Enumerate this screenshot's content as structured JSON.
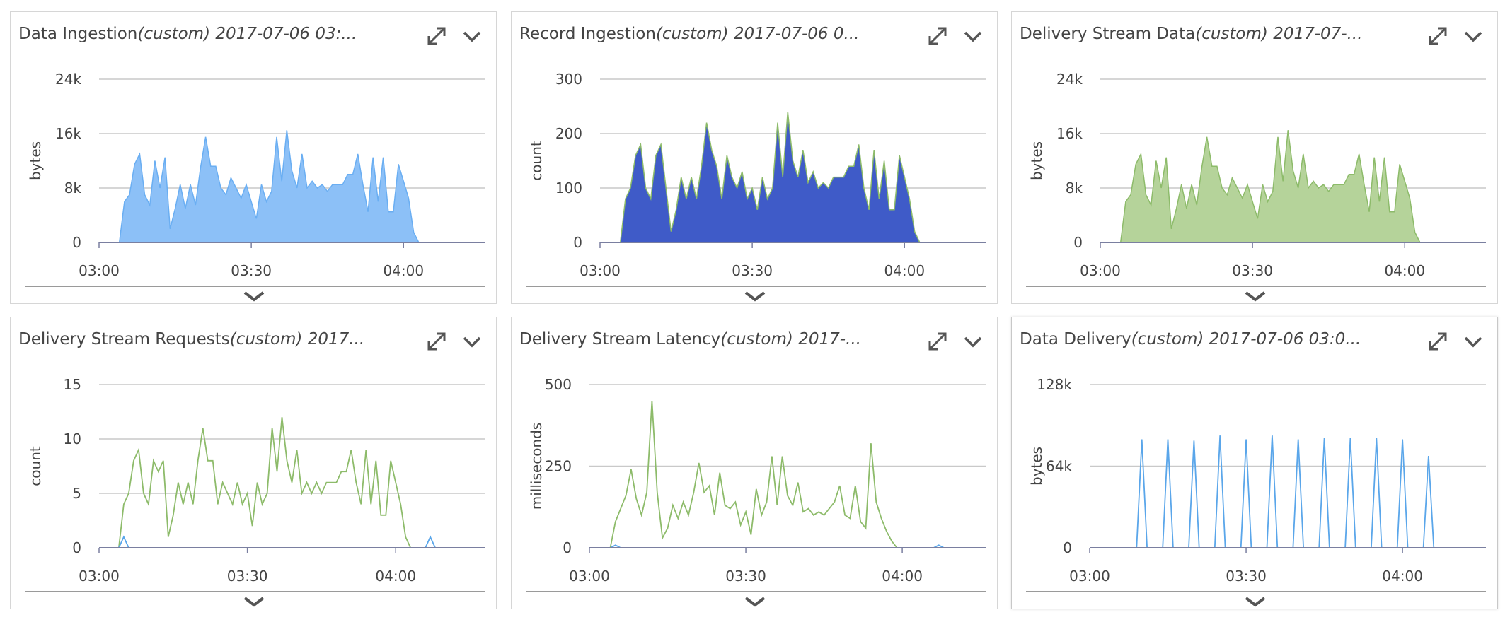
{
  "panels": [
    {
      "title": "Data Ingestion",
      "title_suffix": "(custom) 2017-07-06 03:...",
      "chart_data": {
        "type": "area",
        "ylabel": "bytes",
        "ylim": [
          0,
          24000
        ],
        "yticks": [
          0,
          8000,
          16000,
          24000
        ],
        "ytick_labels": [
          "0",
          "8k",
          "16k",
          "24k"
        ],
        "xticks": [
          "03:00",
          "03:30",
          "04:00"
        ],
        "x_minutes_range": [
          0,
          76
        ],
        "grid": true,
        "series": [
          {
            "color": "#6aaef2",
            "fill": "#8cc0f7",
            "x": [
              0,
              4,
              5,
              6,
              7,
              8,
              9,
              10,
              11,
              12,
              13,
              14,
              15,
              16,
              17,
              18,
              19,
              20,
              21,
              22,
              23,
              24,
              25,
              26,
              27,
              28,
              29,
              30,
              31,
              32,
              33,
              34,
              35,
              36,
              37,
              38,
              39,
              40,
              41,
              42,
              43,
              44,
              45,
              46,
              47,
              48,
              49,
              50,
              51,
              52,
              53,
              54,
              55,
              56,
              57,
              58,
              59,
              60,
              61,
              62,
              63,
              64,
              65,
              66,
              76
            ],
            "y": [
              0,
              0,
              6000,
              7000,
              11500,
              13000,
              7000,
              5500,
              12000,
              8000,
              12500,
              2000,
              5000,
              8500,
              5000,
              8500,
              5500,
              11000,
              15500,
              11200,
              11200,
              8000,
              7000,
              9500,
              8000,
              6500,
              8500,
              6000,
              3500,
              8500,
              6000,
              7500,
              15500,
              9000,
              16500,
              10500,
              8000,
              13000,
              8000,
              9000,
              8000,
              8500,
              7500,
              8500,
              8500,
              8500,
              10000,
              10000,
              13000,
              8500,
              4500,
              12500,
              6000,
              12500,
              4500,
              4500,
              11500,
              9000,
              6500,
              1500,
              0,
              0,
              0,
              0,
              0
            ]
          }
        ]
      }
    },
    {
      "title": "Record Ingestion",
      "title_suffix": "(custom) 2017-07-06 0...",
      "chart_data": {
        "type": "area",
        "ylabel": "count",
        "ylim": [
          0,
          300
        ],
        "yticks": [
          0,
          100,
          200,
          300
        ],
        "ytick_labels": [
          "0",
          "100",
          "200",
          "300"
        ],
        "xticks": [
          "03:00",
          "03:30",
          "04:00"
        ],
        "x_minutes_range": [
          0,
          76
        ],
        "grid": true,
        "series": [
          {
            "color": "#2a49b4",
            "fill": "#3f5bc8",
            "stroke": "#8dbb6a",
            "x": [
              0,
              4,
              5,
              6,
              7,
              8,
              9,
              10,
              11,
              12,
              13,
              14,
              15,
              16,
              17,
              18,
              19,
              20,
              21,
              22,
              23,
              24,
              25,
              26,
              27,
              28,
              29,
              30,
              31,
              32,
              33,
              34,
              35,
              36,
              37,
              38,
              39,
              40,
              41,
              42,
              43,
              44,
              45,
              46,
              47,
              48,
              49,
              50,
              51,
              52,
              53,
              54,
              55,
              56,
              57,
              58,
              59,
              60,
              61,
              62,
              63,
              64,
              65,
              66,
              76
            ],
            "y": [
              0,
              0,
              80,
              100,
              160,
              180,
              100,
              80,
              160,
              180,
              100,
              20,
              60,
              120,
              80,
              120,
              80,
              140,
              220,
              170,
              140,
              80,
              160,
              120,
              100,
              130,
              80,
              100,
              60,
              120,
              80,
              100,
              220,
              120,
              240,
              150,
              120,
              170,
              110,
              130,
              100,
              110,
              100,
              120,
              120,
              120,
              140,
              140,
              180,
              100,
              60,
              170,
              80,
              150,
              60,
              60,
              160,
              120,
              80,
              20,
              0,
              0,
              0,
              0,
              0
            ]
          }
        ]
      }
    },
    {
      "title": "Delivery Stream Data",
      "title_suffix": "(custom) 2017-07-...",
      "chart_data": {
        "type": "area",
        "ylabel": "bytes",
        "ylim": [
          0,
          24000
        ],
        "yticks": [
          0,
          8000,
          16000,
          24000
        ],
        "ytick_labels": [
          "0",
          "8k",
          "16k",
          "24k"
        ],
        "xticks": [
          "03:00",
          "03:30",
          "04:00"
        ],
        "x_minutes_range": [
          0,
          76
        ],
        "grid": true,
        "series": [
          {
            "color": "#8dbb6a",
            "fill": "#b5d39a",
            "x": [
              0,
              4,
              5,
              6,
              7,
              8,
              9,
              10,
              11,
              12,
              13,
              14,
              15,
              16,
              17,
              18,
              19,
              20,
              21,
              22,
              23,
              24,
              25,
              26,
              27,
              28,
              29,
              30,
              31,
              32,
              33,
              34,
              35,
              36,
              37,
              38,
              39,
              40,
              41,
              42,
              43,
              44,
              45,
              46,
              47,
              48,
              49,
              50,
              51,
              52,
              53,
              54,
              55,
              56,
              57,
              58,
              59,
              60,
              61,
              62,
              63,
              64,
              65,
              66,
              76
            ],
            "y": [
              0,
              0,
              6000,
              7000,
              11500,
              13000,
              7000,
              5500,
              12000,
              8000,
              12500,
              2000,
              5000,
              8500,
              5000,
              8500,
              5500,
              11000,
              15500,
              11200,
              11200,
              8000,
              7000,
              9500,
              8000,
              6500,
              8500,
              6000,
              3500,
              8500,
              6000,
              7500,
              15500,
              9000,
              16500,
              10500,
              8000,
              13000,
              8000,
              9000,
              8000,
              8500,
              7500,
              8500,
              8500,
              8500,
              10000,
              10000,
              13000,
              8500,
              4500,
              12500,
              6000,
              12500,
              4500,
              4500,
              11500,
              9000,
              6500,
              1500,
              0,
              0,
              0,
              0,
              0
            ]
          }
        ]
      }
    },
    {
      "title": "Delivery Stream Requests",
      "title_suffix": "(custom) 2017...",
      "chart_data": {
        "type": "line",
        "ylabel": "count",
        "ylim": [
          0,
          15
        ],
        "yticks": [
          0,
          5,
          10,
          15
        ],
        "ytick_labels": [
          "0",
          "5",
          "10",
          "15"
        ],
        "xticks": [
          "03:00",
          "03:30",
          "04:00"
        ],
        "x_minutes_range": [
          0,
          78
        ],
        "grid": true,
        "series": [
          {
            "color": "#8dbb6a",
            "x": [
              0,
              4,
              5,
              6,
              7,
              8,
              9,
              10,
              11,
              12,
              13,
              14,
              15,
              16,
              17,
              18,
              19,
              20,
              21,
              22,
              23,
              24,
              25,
              26,
              27,
              28,
              29,
              30,
              31,
              32,
              33,
              34,
              35,
              36,
              37,
              38,
              39,
              40,
              41,
              42,
              43,
              44,
              45,
              46,
              47,
              48,
              49,
              50,
              51,
              52,
              53,
              54,
              55,
              56,
              57,
              58,
              59,
              60,
              61,
              62,
              63,
              64,
              65,
              66,
              78
            ],
            "y": [
              0,
              0,
              4,
              5,
              8,
              9,
              5,
              4,
              8,
              7,
              8,
              1,
              3,
              6,
              4,
              6,
              4,
              8,
              11,
              8,
              8,
              4,
              6,
              5,
              4,
              6,
              4,
              5,
              2,
              6,
              4,
              5,
              11,
              7,
              12,
              8,
              6,
              9,
              5,
              6,
              5,
              6,
              5,
              6,
              6,
              6,
              7,
              7,
              9,
              6,
              4,
              9,
              4,
              8,
              3,
              3,
              8,
              6,
              4,
              1,
              0,
              0,
              0,
              0,
              0
            ]
          },
          {
            "color": "#5aa6ea",
            "x": [
              0,
              4,
              5,
              6,
              66,
              67,
              68,
              78
            ],
            "y": [
              0,
              0,
              1,
              0,
              0,
              1,
              0,
              0
            ]
          }
        ]
      }
    },
    {
      "title": "Delivery Stream Latency",
      "title_suffix": "(custom) 2017-...",
      "chart_data": {
        "type": "line",
        "ylabel": "milliseconds",
        "ylim": [
          0,
          500
        ],
        "yticks": [
          0,
          250,
          500
        ],
        "ytick_labels": [
          "0",
          "250",
          "500"
        ],
        "xticks": [
          "03:00",
          "03:30",
          "04:00"
        ],
        "x_minutes_range": [
          0,
          76
        ],
        "grid": true,
        "series": [
          {
            "color": "#8dbb6a",
            "x": [
              0,
              4,
              5,
              6,
              7,
              8,
              9,
              10,
              11,
              12,
              13,
              14,
              15,
              16,
              17,
              18,
              19,
              20,
              21,
              22,
              23,
              24,
              25,
              26,
              27,
              28,
              29,
              30,
              31,
              32,
              33,
              34,
              35,
              36,
              37,
              38,
              39,
              40,
              41,
              42,
              43,
              44,
              45,
              46,
              47,
              48,
              49,
              50,
              51,
              52,
              53,
              54,
              55,
              56,
              57,
              58,
              59,
              60,
              61,
              62,
              63,
              64,
              65,
              66,
              76
            ],
            "y": [
              0,
              0,
              80,
              120,
              160,
              240,
              150,
              100,
              170,
              450,
              170,
              30,
              60,
              130,
              90,
              140,
              100,
              170,
              260,
              170,
              190,
              100,
              230,
              130,
              120,
              140,
              70,
              110,
              40,
              180,
              100,
              140,
              280,
              130,
              280,
              160,
              130,
              200,
              110,
              120,
              100,
              110,
              100,
              120,
              140,
              190,
              100,
              90,
              190,
              80,
              60,
              320,
              140,
              90,
              50,
              20,
              0,
              0,
              0,
              0,
              0,
              0,
              0,
              0,
              0
            ]
          },
          {
            "color": "#5aa6ea",
            "x": [
              0,
              4,
              5,
              6,
              66,
              67,
              68,
              76
            ],
            "y": [
              0,
              0,
              8,
              0,
              0,
              8,
              0,
              0
            ]
          },
          {
            "color": "#e0b13a",
            "x": [
              0,
              76
            ],
            "y": [
              0,
              0
            ]
          }
        ]
      }
    },
    {
      "title": "Data Delivery",
      "title_suffix": "(custom) 2017-07-06 03:0...",
      "chart_data": {
        "type": "line",
        "ylabel": "bytes",
        "ylim": [
          0,
          128000
        ],
        "yticks": [
          0,
          64000,
          128000
        ],
        "ytick_labels": [
          "0",
          "64k",
          "128k"
        ],
        "xticks": [
          "03:00",
          "03:30",
          "04:00"
        ],
        "x_minutes_range": [
          0,
          76
        ],
        "grid": true,
        "series": [
          {
            "color": "#5aa6ea",
            "x": [
              0,
              9,
              10,
              11,
              14,
              15,
              16,
              19,
              20,
              21,
              24,
              25,
              26,
              29,
              30,
              31,
              34,
              35,
              36,
              39,
              40,
              41,
              44,
              45,
              46,
              49,
              50,
              51,
              54,
              55,
              56,
              59,
              60,
              61,
              64,
              65,
              66,
              76
            ],
            "y": [
              0,
              0,
              85000,
              0,
              0,
              85000,
              0,
              0,
              84000,
              0,
              0,
              88000,
              0,
              0,
              85000,
              0,
              0,
              88000,
              0,
              0,
              85000,
              0,
              0,
              86000,
              0,
              0,
              86000,
              0,
              0,
              86000,
              0,
              0,
              85000,
              0,
              0,
              72000,
              0,
              0
            ]
          },
          {
            "color": "#e08a6a",
            "x": [
              0,
              76
            ],
            "y": [
              0,
              0
            ]
          }
        ]
      }
    }
  ]
}
